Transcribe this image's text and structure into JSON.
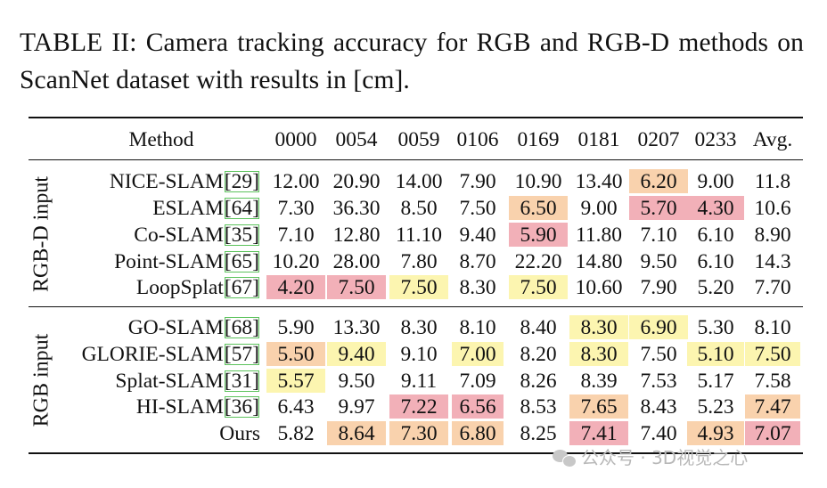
{
  "caption": "TABLE II: Camera tracking accuracy for RGB and RGB-D methods on ScanNet dataset with results in [cm].",
  "colors": {
    "first": "#f2b0b8",
    "second": "#f9d2ad",
    "third": "#fcf5b0"
  },
  "header": [
    "Method",
    "0000",
    "0054",
    "0059",
    "0106",
    "0169",
    "0181",
    "0207",
    "0233",
    "Avg."
  ],
  "groups": [
    {
      "label": "RGB-D input",
      "rows": [
        {
          "name": "NICE-SLAM",
          "ref": "[29]",
          "values": [
            "12.00",
            "20.90",
            "14.00",
            "7.90",
            "10.90",
            "13.40",
            "6.20",
            "9.00",
            "11.8"
          ],
          "hl": [
            "",
            "",
            "",
            "",
            "",
            "",
            "second",
            "",
            ""
          ]
        },
        {
          "name": "ESLAM",
          "ref": "[64]",
          "values": [
            "7.30",
            "36.30",
            "8.50",
            "7.50",
            "6.50",
            "9.00",
            "5.70",
            "4.30",
            "10.6"
          ],
          "hl": [
            "",
            "",
            "",
            "",
            "second",
            "",
            "first",
            "first",
            ""
          ]
        },
        {
          "name": "Co-SLAM",
          "ref": "[35]",
          "values": [
            "7.10",
            "12.80",
            "11.10",
            "9.40",
            "5.90",
            "11.80",
            "7.10",
            "6.10",
            "8.90"
          ],
          "hl": [
            "",
            "",
            "",
            "",
            "first",
            "",
            "",
            "",
            ""
          ]
        },
        {
          "name": "Point-SLAM",
          "ref": "[65]",
          "values": [
            "10.20",
            "28.00",
            "7.80",
            "8.70",
            "22.20",
            "14.80",
            "9.50",
            "6.10",
            "14.3"
          ],
          "hl": [
            "",
            "",
            "",
            "",
            "",
            "",
            "",
            "",
            ""
          ]
        },
        {
          "name": "LoopSplat",
          "ref": "[67]",
          "values": [
            "4.20",
            "7.50",
            "7.50",
            "8.30",
            "7.50",
            "10.60",
            "7.90",
            "5.20",
            "7.70"
          ],
          "hl": [
            "first",
            "first",
            "third",
            "",
            "third",
            "",
            "",
            "",
            ""
          ]
        }
      ]
    },
    {
      "label": "RGB input",
      "rows": [
        {
          "name": "GO-SLAM",
          "ref": "[68]",
          "values": [
            "5.90",
            "13.30",
            "8.30",
            "8.10",
            "8.40",
            "8.30",
            "6.90",
            "5.30",
            "8.10"
          ],
          "hl": [
            "",
            "",
            "",
            "",
            "",
            "third",
            "third",
            "",
            ""
          ]
        },
        {
          "name": "GLORIE-SLAM",
          "ref": "[57]",
          "values": [
            "5.50",
            "9.40",
            "9.10",
            "7.00",
            "8.20",
            "8.30",
            "7.50",
            "5.10",
            "7.50"
          ],
          "hl": [
            "second",
            "third",
            "",
            "third",
            "",
            "third",
            "",
            "third",
            "third"
          ]
        },
        {
          "name": "Splat-SLAM",
          "ref": "[31]",
          "values": [
            "5.57",
            "9.50",
            "9.11",
            "7.09",
            "8.26",
            "8.39",
            "7.53",
            "5.17",
            "7.58"
          ],
          "hl": [
            "third",
            "",
            "",
            "",
            "",
            "",
            "",
            "",
            ""
          ]
        },
        {
          "name": "HI-SLAM",
          "ref": "[36]",
          "values": [
            "6.43",
            "9.97",
            "7.22",
            "6.56",
            "8.53",
            "7.65",
            "8.43",
            "5.23",
            "7.47"
          ],
          "hl": [
            "",
            "",
            "first",
            "first",
            "",
            "second",
            "",
            "",
            "second"
          ]
        },
        {
          "name": "Ours",
          "ref": "",
          "values": [
            "5.82",
            "8.64",
            "7.30",
            "6.80",
            "8.25",
            "7.41",
            "7.40",
            "4.93",
            "7.07"
          ],
          "hl": [
            "",
            "second",
            "second",
            "second",
            "",
            "first",
            "",
            "second",
            "first"
          ]
        }
      ]
    }
  ],
  "watermark": "公众号 · 3D视觉之心"
}
